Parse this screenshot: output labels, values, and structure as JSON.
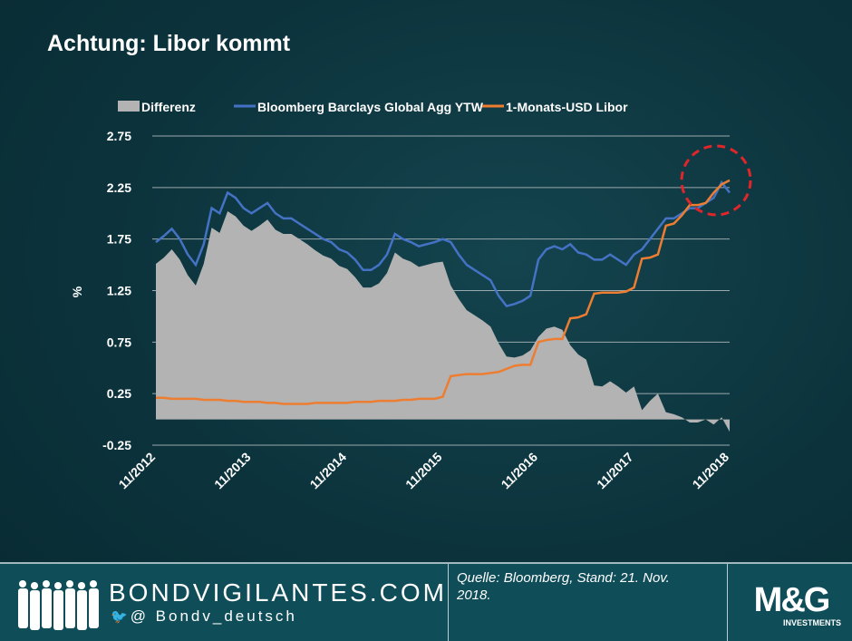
{
  "title": "Achtung: Libor kommt",
  "footer": {
    "site": "BONDVIGILANTES.COM",
    "handle": "@ Bondv_deutsch",
    "source": "Quelle: Bloomberg, Stand: 21. Nov. 2018.",
    "logo_text": "M&G",
    "logo_sub": "INVESTMENTS"
  },
  "chart_data": {
    "type": "line",
    "title": "",
    "xlabel": "",
    "ylabel": "%",
    "ylim": [
      -0.25,
      2.75
    ],
    "yticks": [
      "2.75",
      "2.25",
      "1.75",
      "1.25",
      "0.75",
      "0.25",
      "-0.25"
    ],
    "ytick_values": [
      2.75,
      2.25,
      1.75,
      1.25,
      0.75,
      0.25,
      -0.25
    ],
    "xticks": [
      "11/2012",
      "11/2013",
      "11/2014",
      "11/2015",
      "11/2016",
      "11/2017",
      "11/2018"
    ],
    "grid": true,
    "legend_position": "top",
    "x": [
      "2012-11",
      "2012-12",
      "2013-01",
      "2013-02",
      "2013-03",
      "2013-04",
      "2013-05",
      "2013-06",
      "2013-07",
      "2013-08",
      "2013-09",
      "2013-10",
      "2013-11",
      "2013-12",
      "2014-01",
      "2014-02",
      "2014-03",
      "2014-04",
      "2014-05",
      "2014-06",
      "2014-07",
      "2014-08",
      "2014-09",
      "2014-10",
      "2014-11",
      "2014-12",
      "2015-01",
      "2015-02",
      "2015-03",
      "2015-04",
      "2015-05",
      "2015-06",
      "2015-07",
      "2015-08",
      "2015-09",
      "2015-10",
      "2015-11",
      "2015-12",
      "2016-01",
      "2016-02",
      "2016-03",
      "2016-04",
      "2016-05",
      "2016-06",
      "2016-07",
      "2016-08",
      "2016-09",
      "2016-10",
      "2016-11",
      "2016-12",
      "2017-01",
      "2017-02",
      "2017-03",
      "2017-04",
      "2017-05",
      "2017-06",
      "2017-07",
      "2017-08",
      "2017-09",
      "2017-10",
      "2017-11",
      "2017-12",
      "2018-01",
      "2018-02",
      "2018-03",
      "2018-04",
      "2018-05",
      "2018-06",
      "2018-07",
      "2018-08",
      "2018-09",
      "2018-10",
      "2018-11"
    ],
    "series": [
      {
        "name": "Differenz",
        "kind": "area",
        "color": "#b3b3b3",
        "derived": "Bloomberg Barclays Global Agg YTW minus 1-Monats-USD Libor"
      },
      {
        "name": "Bloomberg Barclays Global Agg YTW",
        "kind": "line",
        "color": "#4472c4",
        "values": [
          1.72,
          1.78,
          1.85,
          1.75,
          1.6,
          1.5,
          1.7,
          2.05,
          2.0,
          2.2,
          2.15,
          2.05,
          2.0,
          2.05,
          2.1,
          2.0,
          1.95,
          1.95,
          1.9,
          1.85,
          1.8,
          1.75,
          1.72,
          1.65,
          1.62,
          1.55,
          1.45,
          1.45,
          1.5,
          1.6,
          1.8,
          1.75,
          1.72,
          1.68,
          1.7,
          1.72,
          1.75,
          1.72,
          1.6,
          1.5,
          1.45,
          1.4,
          1.35,
          1.2,
          1.1,
          1.12,
          1.15,
          1.2,
          1.55,
          1.65,
          1.68,
          1.65,
          1.7,
          1.62,
          1.6,
          1.55,
          1.55,
          1.6,
          1.55,
          1.5,
          1.6,
          1.65,
          1.75,
          1.85,
          1.95,
          1.95,
          2.0,
          2.05,
          2.05,
          2.1,
          2.15,
          2.3,
          2.2
        ]
      },
      {
        "name": "1-Monats-USD Libor",
        "kind": "line",
        "color": "#ed7d31",
        "values": [
          0.21,
          0.21,
          0.2,
          0.2,
          0.2,
          0.2,
          0.19,
          0.19,
          0.19,
          0.18,
          0.18,
          0.17,
          0.17,
          0.17,
          0.16,
          0.16,
          0.15,
          0.15,
          0.15,
          0.15,
          0.16,
          0.16,
          0.16,
          0.16,
          0.16,
          0.17,
          0.17,
          0.17,
          0.18,
          0.18,
          0.18,
          0.19,
          0.19,
          0.2,
          0.2,
          0.2,
          0.22,
          0.42,
          0.43,
          0.44,
          0.44,
          0.44,
          0.45,
          0.46,
          0.49,
          0.52,
          0.53,
          0.53,
          0.75,
          0.77,
          0.78,
          0.78,
          0.98,
          0.99,
          1.02,
          1.22,
          1.23,
          1.23,
          1.23,
          1.24,
          1.28,
          1.56,
          1.57,
          1.6,
          1.88,
          1.9,
          1.98,
          2.08,
          2.08,
          2.1,
          2.2,
          2.28,
          2.32
        ]
      }
    ],
    "annotation": {
      "type": "dashed-circle",
      "color": "#e0262b",
      "around": "2018 convergence"
    }
  }
}
